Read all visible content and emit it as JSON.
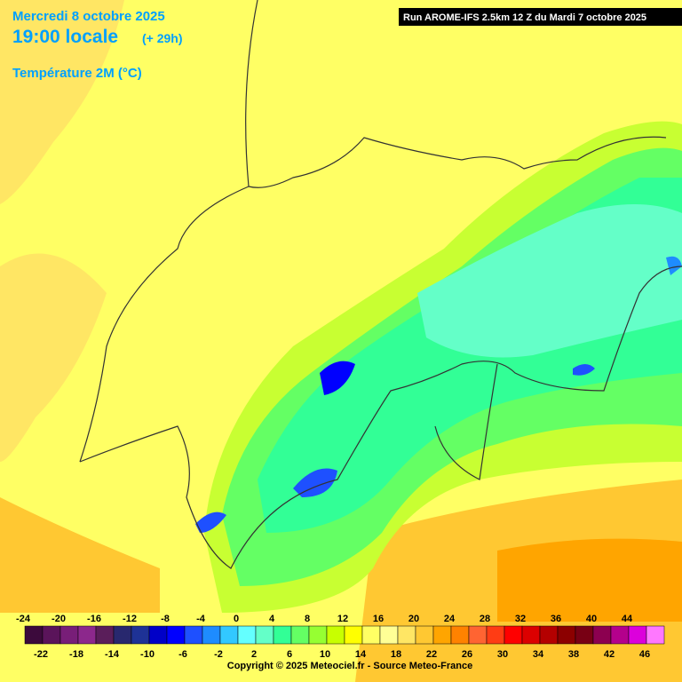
{
  "header": {
    "date": "Mercredi 8 octobre 2025",
    "time": "19:00 locale",
    "offset": "(+ 29h)",
    "parameter": "Température 2M (°C)",
    "run": "Run AROME-IFS 2.5km 12 Z du Mardi 7 octobre 2025"
  },
  "legend": {
    "ticks": [
      -24,
      -22,
      -20,
      -18,
      -16,
      -14,
      -12,
      -10,
      -8,
      -6,
      -4,
      -2,
      0,
      2,
      4,
      6,
      8,
      10,
      12,
      14,
      16,
      18,
      20,
      22,
      24,
      26,
      28,
      30,
      32,
      34,
      36,
      38,
      40,
      42,
      44,
      46
    ],
    "colors": [
      "#3c0a3c",
      "#5a145a",
      "#781e78",
      "#8c288c",
      "#5a1e5a",
      "#28286e",
      "#1e3296",
      "#0000c8",
      "#0000ff",
      "#1e50ff",
      "#1e8cff",
      "#32c8ff",
      "#64ffff",
      "#64ffc8",
      "#32ff96",
      "#64ff64",
      "#96ff32",
      "#c8ff00",
      "#ffff00",
      "#ffff64",
      "#ffff96",
      "#ffe664",
      "#ffc832",
      "#ffa500",
      "#ff8200",
      "#ff6432",
      "#ff3c14",
      "#ff0000",
      "#dc0000",
      "#b40000",
      "#8c0000",
      "#780014",
      "#8c0050",
      "#b4008c",
      "#dc00dc",
      "#ff78ff"
    ]
  },
  "footer": {
    "copyright": "Copyright © 2025 Meteociel.fr - Source Meteo-France"
  }
}
